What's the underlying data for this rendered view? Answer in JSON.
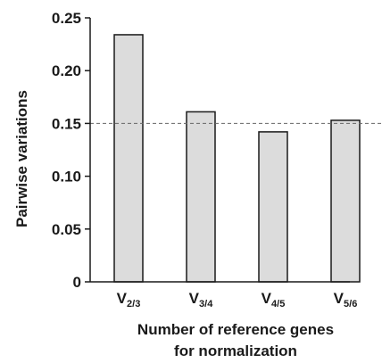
{
  "chart_data": {
    "type": "bar",
    "categories": [
      {
        "base": "V",
        "sub": "2/3"
      },
      {
        "base": "V",
        "sub": "3/4"
      },
      {
        "base": "V",
        "sub": "4/5"
      },
      {
        "base": "V",
        "sub": "5/6"
      }
    ],
    "values": [
      0.234,
      0.161,
      0.142,
      0.153
    ],
    "ylabel": "Pairwise variations",
    "xlabel_lines": [
      "Number of reference genes",
      "for normalization"
    ],
    "ylim": [
      0,
      0.25
    ],
    "yticks": [
      "0",
      "0.05",
      "0.10",
      "0.15",
      "0.20",
      "0.25"
    ],
    "ytick_values": [
      0,
      0.05,
      0.1,
      0.15,
      0.2,
      0.25
    ],
    "threshold": 0.15,
    "grid": false,
    "colors": {
      "bar_fill": "#dcdcdc",
      "bar_stroke": "#1a1a1a",
      "threshold_line": "#666666",
      "axis": "#1a1a1a"
    }
  }
}
